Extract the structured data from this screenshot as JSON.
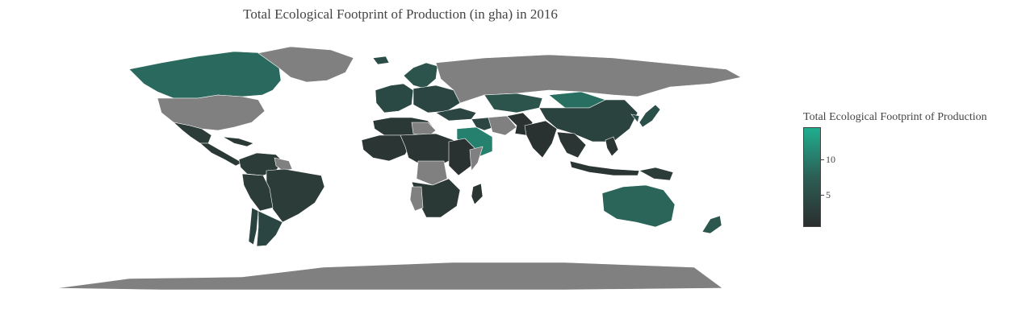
{
  "chart_data": {
    "type": "choropleth",
    "title": "Total Ecological Footprint of Production (in gha) in 2016",
    "projection": "equirectangular",
    "missing_color": "#808080",
    "colorscale": [
      "#2A2E2E",
      "#2C5E55",
      "#1FAE8F"
    ],
    "colorbar": {
      "title": "Total Ecological Footprint of Production",
      "range": [
        0.5,
        14.5
      ],
      "ticks": [
        {
          "value": 5,
          "label": "5"
        },
        {
          "value": 10,
          "label": "10"
        }
      ]
    },
    "regions": [
      {
        "name": "Canada",
        "value": 8.5
      },
      {
        "name": "Greenland",
        "value": null
      },
      {
        "name": "United States",
        "value": null
      },
      {
        "name": "Mexico",
        "value": 2.5
      },
      {
        "name": "Central America",
        "value": 2.0
      },
      {
        "name": "Caribbean",
        "value": 2.0
      },
      {
        "name": "Colombia & Venezuela",
        "value": 2.5
      },
      {
        "name": "Guianas",
        "value": null
      },
      {
        "name": "Brazil",
        "value": 2.5
      },
      {
        "name": "Peru & Bolivia",
        "value": 2.5
      },
      {
        "name": "Chile",
        "value": 3.5
      },
      {
        "name": "Argentina",
        "value": 4.0
      },
      {
        "name": "Iceland",
        "value": 5.0
      },
      {
        "name": "Scandinavia",
        "value": 6.0
      },
      {
        "name": "Western Europe",
        "value": 4.5
      },
      {
        "name": "Eastern Europe",
        "value": 4.0
      },
      {
        "name": "Russia",
        "value": null
      },
      {
        "name": "Kazakhstan",
        "value": 6.0
      },
      {
        "name": "Mongolia",
        "value": 9.0
      },
      {
        "name": "China",
        "value": 3.5
      },
      {
        "name": "Korea & Japan",
        "value": 5.5
      },
      {
        "name": "Turkey",
        "value": 4.0
      },
      {
        "name": "Saudi Arabia",
        "value": 10.5
      },
      {
        "name": "Iraq & Gulf",
        "value": 4.0
      },
      {
        "name": "Iran",
        "value": null
      },
      {
        "name": "Afghanistan & Pakistan",
        "value": 1.0
      },
      {
        "name": "India",
        "value": 1.0
      },
      {
        "name": "Southeast Asia",
        "value": 1.5
      },
      {
        "name": "Indonesia",
        "value": 1.5
      },
      {
        "name": "Philippines",
        "value": 1.5
      },
      {
        "name": "Papua New Guinea",
        "value": 2.5
      },
      {
        "name": "North Africa",
        "value": 2.0
      },
      {
        "name": "Libya",
        "value": null
      },
      {
        "name": "West Africa",
        "value": 1.5
      },
      {
        "name": "Central Africa",
        "value": 1.5
      },
      {
        "name": "Congo",
        "value": null
      },
      {
        "name": "East Africa",
        "value": 1.0
      },
      {
        "name": "Somalia",
        "value": null
      },
      {
        "name": "Southern Africa",
        "value": 2.0
      },
      {
        "name": "Namibia",
        "value": null
      },
      {
        "name": "Madagascar",
        "value": 1.5
      },
      {
        "name": "Australia",
        "value": 8.0
      },
      {
        "name": "New Zealand",
        "value": 6.5
      },
      {
        "name": "Antarctica",
        "value": null
      }
    ]
  }
}
